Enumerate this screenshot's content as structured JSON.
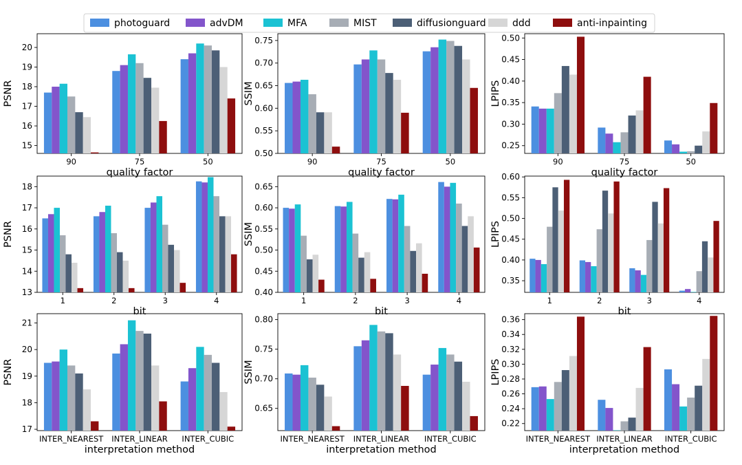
{
  "legend": {
    "items": [
      {
        "label": "photoguard",
        "color": "#4C8FE0"
      },
      {
        "label": "advDM",
        "color": "#8355CB"
      },
      {
        "label": "MFA",
        "color": "#1BC2D3"
      },
      {
        "label": "MIST",
        "color": "#A7ADB5"
      },
      {
        "label": "diffusionguard",
        "color": "#4C5F76"
      },
      {
        "label": "ddd",
        "color": "#D6D6D6"
      },
      {
        "label": "anti-inpainting",
        "color": "#8E0E0E"
      }
    ]
  },
  "chart_data": [
    {
      "type": "bar",
      "ylabel": "PSNR",
      "xlabel": "quality factor",
      "categories": [
        "90",
        "75",
        "50"
      ],
      "ylim": [
        14.6,
        20.7
      ],
      "yticks": [
        "15",
        "16",
        "17",
        "18",
        "19",
        "20"
      ],
      "series": [
        {
          "name": "photoguard",
          "values": [
            17.7,
            18.8,
            19.4
          ]
        },
        {
          "name": "advDM",
          "values": [
            18.0,
            19.1,
            19.7
          ]
        },
        {
          "name": "MFA",
          "values": [
            18.15,
            19.65,
            20.2
          ]
        },
        {
          "name": "MIST",
          "values": [
            17.5,
            19.2,
            20.1
          ]
        },
        {
          "name": "diffusionguard",
          "values": [
            16.7,
            18.45,
            19.85
          ]
        },
        {
          "name": "ddd",
          "values": [
            16.45,
            17.95,
            19.0
          ]
        },
        {
          "name": "anti-inpainting",
          "values": [
            14.65,
            16.25,
            17.4
          ]
        }
      ]
    },
    {
      "type": "bar",
      "ylabel": "SSIM",
      "xlabel": "quality factor",
      "categories": [
        "90",
        "75",
        "50"
      ],
      "ylim": [
        0.5,
        0.765
      ],
      "yticks": [
        "0.50",
        "0.55",
        "0.60",
        "0.65",
        "0.70",
        "0.75"
      ],
      "series": [
        {
          "name": "photoguard",
          "values": [
            0.656,
            0.697,
            0.726
          ]
        },
        {
          "name": "advDM",
          "values": [
            0.659,
            0.708,
            0.735
          ]
        },
        {
          "name": "MFA",
          "values": [
            0.663,
            0.728,
            0.752
          ]
        },
        {
          "name": "MIST",
          "values": [
            0.631,
            0.708,
            0.749
          ]
        },
        {
          "name": "diffusionguard",
          "values": [
            0.591,
            0.678,
            0.738
          ]
        },
        {
          "name": "ddd",
          "values": [
            0.591,
            0.663,
            0.708
          ]
        },
        {
          "name": "anti-inpainting",
          "values": [
            0.515,
            0.59,
            0.645
          ]
        }
      ]
    },
    {
      "type": "bar",
      "ylabel": "LPIPS",
      "xlabel": "quality factor",
      "categories": [
        "90",
        "75",
        "50"
      ],
      "ylim": [
        0.232,
        0.51
      ],
      "yticks": [
        "0.25",
        "0.30",
        "0.35",
        "0.40",
        "0.45",
        "0.50"
      ],
      "series": [
        {
          "name": "photoguard",
          "values": [
            0.341,
            0.292,
            0.262
          ]
        },
        {
          "name": "advDM",
          "values": [
            0.336,
            0.278,
            0.253
          ]
        },
        {
          "name": "MFA",
          "values": [
            0.336,
            0.258,
            0.236
          ]
        },
        {
          "name": "MIST",
          "values": [
            0.372,
            0.281,
            0.237
          ]
        },
        {
          "name": "diffusionguard",
          "values": [
            0.435,
            0.32,
            0.25
          ]
        },
        {
          "name": "ddd",
          "values": [
            0.415,
            0.332,
            0.283
          ]
        },
        {
          "name": "anti-inpainting",
          "values": [
            0.503,
            0.41,
            0.349
          ]
        }
      ]
    },
    {
      "type": "bar",
      "ylabel": "PSNR",
      "xlabel": "bit",
      "categories": [
        "1",
        "2",
        "3",
        "4"
      ],
      "ylim": [
        13.0,
        18.5
      ],
      "yticks": [
        "13",
        "14",
        "15",
        "16",
        "17",
        "18"
      ],
      "series": [
        {
          "name": "photoguard",
          "values": [
            16.5,
            16.6,
            17.0,
            18.25
          ]
        },
        {
          "name": "advDM",
          "values": [
            16.7,
            16.8,
            17.25,
            18.2
          ]
        },
        {
          "name": "MFA",
          "values": [
            17.0,
            17.1,
            17.55,
            18.45
          ]
        },
        {
          "name": "MIST",
          "values": [
            15.7,
            15.8,
            16.2,
            17.55
          ]
        },
        {
          "name": "diffusionguard",
          "values": [
            14.8,
            14.9,
            15.25,
            16.6
          ]
        },
        {
          "name": "ddd",
          "values": [
            14.4,
            14.5,
            15.0,
            16.6
          ]
        },
        {
          "name": "anti-inpainting",
          "values": [
            13.2,
            13.2,
            13.45,
            14.8
          ]
        }
      ]
    },
    {
      "type": "bar",
      "ylabel": "SSIM",
      "xlabel": "bit",
      "categories": [
        "1",
        "2",
        "3",
        "4"
      ],
      "ylim": [
        0.4,
        0.675
      ],
      "yticks": [
        "0.40",
        "0.45",
        "0.50",
        "0.55",
        "0.60",
        "0.65"
      ],
      "series": [
        {
          "name": "photoguard",
          "values": [
            0.6,
            0.604,
            0.621,
            0.661
          ]
        },
        {
          "name": "advDM",
          "values": [
            0.598,
            0.603,
            0.62,
            0.65
          ]
        },
        {
          "name": "MFA",
          "values": [
            0.608,
            0.614,
            0.631,
            0.659
          ]
        },
        {
          "name": "MIST",
          "values": [
            0.534,
            0.539,
            0.557,
            0.61
          ]
        },
        {
          "name": "diffusionguard",
          "values": [
            0.478,
            0.482,
            0.498,
            0.557
          ]
        },
        {
          "name": "ddd",
          "values": [
            0.489,
            0.495,
            0.516,
            0.58
          ]
        },
        {
          "name": "anti-inpainting",
          "values": [
            0.43,
            0.432,
            0.444,
            0.506
          ]
        }
      ]
    },
    {
      "type": "bar",
      "ylabel": "LPIPS",
      "xlabel": "bit",
      "categories": [
        "1",
        "2",
        "3",
        "4"
      ],
      "ylim": [
        0.322,
        0.602
      ],
      "yticks": [
        "0.35",
        "0.40",
        "0.45",
        "0.50",
        "0.55",
        "0.60"
      ],
      "series": [
        {
          "name": "photoguard",
          "values": [
            0.403,
            0.399,
            0.38,
            0.326
          ]
        },
        {
          "name": "advDM",
          "values": [
            0.4,
            0.395,
            0.375,
            0.33
          ]
        },
        {
          "name": "MFA",
          "values": [
            0.39,
            0.385,
            0.364,
            0.323
          ]
        },
        {
          "name": "MIST",
          "values": [
            0.48,
            0.474,
            0.448,
            0.373
          ]
        },
        {
          "name": "diffusionguard",
          "values": [
            0.575,
            0.567,
            0.54,
            0.445
          ]
        },
        {
          "name": "ddd",
          "values": [
            0.519,
            0.512,
            0.488,
            0.406
          ]
        },
        {
          "name": "anti-inpainting",
          "values": [
            0.593,
            0.589,
            0.573,
            0.494
          ]
        }
      ]
    },
    {
      "type": "bar",
      "ylabel": "PSNR",
      "xlabel": "interpretation method",
      "categories": [
        "INTER_NEAREST",
        "INTER_LINEAR",
        "INTER_CUBIC"
      ],
      "ylim": [
        16.95,
        21.35
      ],
      "yticks": [
        "17",
        "18",
        "19",
        "20",
        "21"
      ],
      "series": [
        {
          "name": "photoguard",
          "values": [
            19.5,
            19.85,
            18.8
          ]
        },
        {
          "name": "advDM",
          "values": [
            19.55,
            20.2,
            19.3
          ]
        },
        {
          "name": "MFA",
          "values": [
            20.0,
            21.1,
            20.1
          ]
        },
        {
          "name": "MIST",
          "values": [
            19.4,
            20.7,
            19.8
          ]
        },
        {
          "name": "diffusionguard",
          "values": [
            19.1,
            20.6,
            19.5
          ]
        },
        {
          "name": "ddd",
          "values": [
            18.5,
            19.4,
            18.4
          ]
        },
        {
          "name": "anti-inpainting",
          "values": [
            17.3,
            18.05,
            17.1
          ]
        }
      ]
    },
    {
      "type": "bar",
      "ylabel": "SSIM",
      "xlabel": "interpretation method",
      "categories": [
        "INTER_NEAREST",
        "INTER_LINEAR",
        "INTER_CUBIC"
      ],
      "ylim": [
        0.6125,
        0.81
      ],
      "yticks": [
        "0.65",
        "0.70",
        "0.75",
        "0.80"
      ],
      "series": [
        {
          "name": "photoguard",
          "values": [
            0.709,
            0.755,
            0.707
          ]
        },
        {
          "name": "advDM",
          "values": [
            0.707,
            0.765,
            0.724
          ]
        },
        {
          "name": "MFA",
          "values": [
            0.723,
            0.791,
            0.752
          ]
        },
        {
          "name": "MIST",
          "values": [
            0.702,
            0.78,
            0.741
          ]
        },
        {
          "name": "diffusionguard",
          "values": [
            0.69,
            0.777,
            0.729
          ]
        },
        {
          "name": "ddd",
          "values": [
            0.67,
            0.741,
            0.695
          ]
        },
        {
          "name": "anti-inpainting",
          "values": [
            0.62,
            0.688,
            0.637
          ]
        }
      ]
    },
    {
      "type": "bar",
      "ylabel": "LPIPS",
      "xlabel": "interpretation method",
      "categories": [
        "INTER_NEAREST",
        "INTER_LINEAR",
        "INTER_CUBIC"
      ],
      "ylim": [
        0.2105,
        0.368
      ],
      "yticks": [
        "0.22",
        "0.24",
        "0.26",
        "0.28",
        "0.30",
        "0.32",
        "0.34",
        "0.36"
      ],
      "series": [
        {
          "name": "photoguard",
          "values": [
            0.269,
            0.252,
            0.293
          ]
        },
        {
          "name": "advDM",
          "values": [
            0.27,
            0.241,
            0.273
          ]
        },
        {
          "name": "MFA",
          "values": [
            0.253,
            0.211,
            0.243
          ]
        },
        {
          "name": "MIST",
          "values": [
            0.276,
            0.223,
            0.255
          ]
        },
        {
          "name": "diffusionguard",
          "values": [
            0.292,
            0.228,
            0.271
          ]
        },
        {
          "name": "ddd",
          "values": [
            0.311,
            0.268,
            0.307
          ]
        },
        {
          "name": "anti-inpainting",
          "values": [
            0.364,
            0.323,
            0.365
          ]
        }
      ]
    }
  ]
}
